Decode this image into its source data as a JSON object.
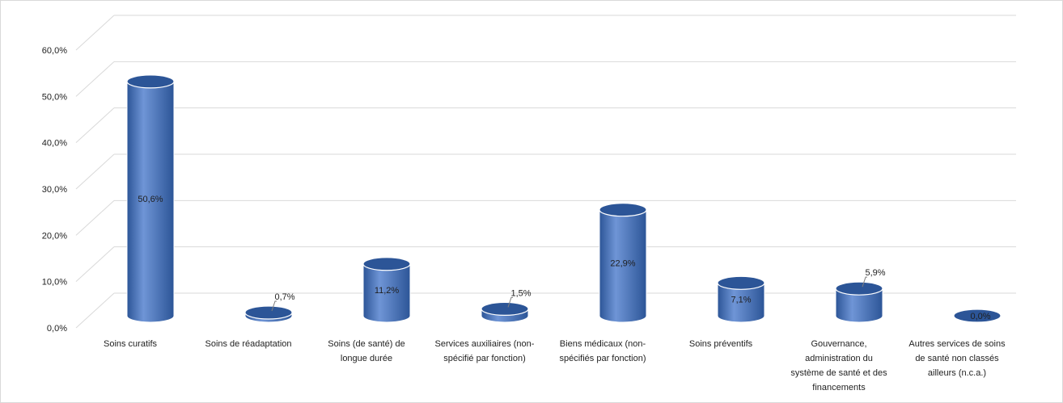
{
  "chart_data": {
    "type": "bar",
    "style": "3d-cylinder",
    "categories": [
      [
        "Soins curatifs"
      ],
      [
        "Soins de réadaptation"
      ],
      [
        "Soins (de santé) de",
        "longue durée"
      ],
      [
        "Services auxiliaires (non-",
        "spécifié par fonction)"
      ],
      [
        "Biens médicaux (non-",
        "spécifiés par fonction)"
      ],
      [
        "Soins préventifs"
      ],
      [
        "Gouvernance,",
        "administration du",
        "système de santé et des",
        "financements"
      ],
      [
        "Autres services de soins",
        "de santé non classés",
        "ailleurs (n.c.a.)"
      ]
    ],
    "values": [
      50.6,
      0.7,
      11.2,
      1.5,
      22.9,
      7.1,
      5.9,
      0.0
    ],
    "data_labels": [
      "50,6%",
      "0,7%",
      "11,2%",
      "1,5%",
      "22,9%",
      "7,1%",
      "5,9%",
      "0,0%"
    ],
    "ylim": [
      0,
      60
    ],
    "yticks": [
      0,
      10,
      20,
      30,
      40,
      50,
      60
    ],
    "ytick_labels": [
      "0,0%",
      "10,0%",
      "20,0%",
      "30,0%",
      "40,0%",
      "50,0%",
      "60,0%"
    ],
    "grid": true,
    "legend": "none",
    "colors": {
      "bar": "#4472c4",
      "bar_dark": "#2c5597",
      "bar_light": "#6f95d6",
      "grid": "#d9d9d9"
    }
  }
}
